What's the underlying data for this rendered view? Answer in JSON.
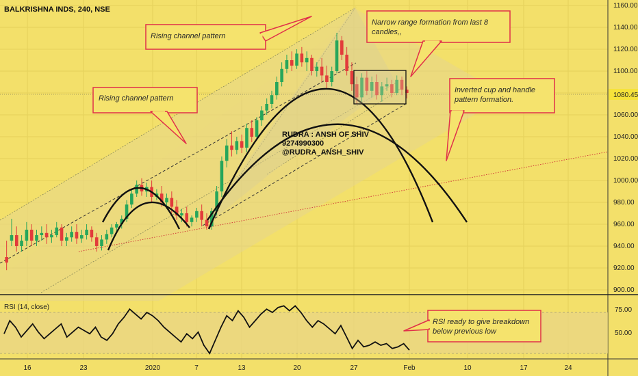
{
  "header": {
    "symbol_title": "BALKRISHNA INDS, 240, NSE"
  },
  "price_axis": {
    "ticks": [
      "1160.00",
      "1140.00",
      "1120.00",
      "1100.00",
      "1080.00",
      "1060.00",
      "1040.00",
      "1020.00",
      "1000.00",
      "980.00",
      "960.00",
      "940.00",
      "920.00",
      "900.00"
    ],
    "last_price_label": "1080.45"
  },
  "rsi_panel": {
    "title": "RSI (14, close)",
    "ticks": [
      "75.00",
      "50.00"
    ]
  },
  "time_axis": {
    "labels": [
      "16",
      "23",
      "2020",
      "7",
      "13",
      "20",
      "27",
      "Feb",
      "10",
      "17",
      "24"
    ]
  },
  "annotations": {
    "rising_channel_top": "Rising channel pattern",
    "rising_channel_left": "Rising channel pattern",
    "narrow_range": [
      "Narrow range formation from last 8",
      "candles,,"
    ],
    "inverted_cup": [
      "Inverted cup and handle",
      "pattern formation."
    ],
    "rsi_note": [
      "RSI ready to give breakdown",
      "below previous low"
    ]
  },
  "watermark": {
    "lines": [
      "RUDRA : ANSH OF SHIV",
      "9274990300",
      "@RUDRA_ANSH_SHIV"
    ]
  },
  "colors": {
    "background": "#f3e06a",
    "up_candle": "#26a65b",
    "down_candle": "#e23b3b",
    "callout_border": "#e0304a",
    "callout_fill": "#f5e36d",
    "channel_fill": "#e6d68c",
    "price_label_bg": "#f6e33a"
  },
  "chart_data": [
    {
      "type": "candlestick",
      "title": "BALKRISHNA INDS, 240, NSE",
      "ylim": [
        900,
        1160
      ],
      "x_labels": [
        "16",
        "23",
        "2020",
        "7",
        "13",
        "20",
        "27",
        "Feb",
        "10",
        "17",
        "24"
      ],
      "last_price": 1080.45,
      "candles": [
        [
          930,
          945,
          925,
          918
        ],
        [
          945,
          965,
          950,
          940
        ],
        [
          950,
          958,
          940,
          935
        ],
        [
          940,
          950,
          945,
          935
        ],
        [
          945,
          962,
          955,
          940
        ],
        [
          955,
          960,
          945,
          940
        ],
        [
          945,
          955,
          950,
          940
        ],
        [
          950,
          958,
          952,
          945
        ],
        [
          952,
          960,
          948,
          942
        ],
        [
          948,
          955,
          950,
          943
        ],
        [
          950,
          962,
          957,
          948
        ],
        [
          957,
          960,
          945,
          940
        ],
        [
          945,
          952,
          948,
          940
        ],
        [
          948,
          958,
          953,
          944
        ],
        [
          953,
          960,
          947,
          942
        ],
        [
          947,
          955,
          950,
          943
        ],
        [
          950,
          960,
          955,
          946
        ],
        [
          955,
          958,
          948,
          944
        ],
        [
          948,
          952,
          940,
          935
        ],
        [
          940,
          950,
          946,
          936
        ],
        [
          946,
          955,
          951,
          942
        ],
        [
          951,
          960,
          957,
          948
        ],
        [
          957,
          962,
          960,
          952
        ],
        [
          960,
          968,
          965,
          956
        ],
        [
          965,
          982,
          978,
          962
        ],
        [
          978,
          992,
          988,
          975
        ],
        [
          988,
          1000,
          996,
          985
        ],
        [
          996,
          1002,
          990,
          986
        ],
        [
          990,
          998,
          994,
          985
        ],
        [
          994,
          1000,
          985,
          980
        ],
        [
          985,
          992,
          988,
          982
        ],
        [
          988,
          995,
          980,
          976
        ],
        [
          980,
          988,
          984,
          974
        ],
        [
          984,
          990,
          976,
          970
        ],
        [
          976,
          982,
          968,
          964
        ],
        [
          968,
          974,
          970,
          962
        ],
        [
          970,
          976,
          962,
          958
        ],
        [
          962,
          968,
          966,
          958
        ],
        [
          966,
          975,
          972,
          962
        ],
        [
          972,
          978,
          964,
          958
        ],
        [
          964,
          970,
          958,
          955
        ],
        [
          958,
          975,
          972,
          955
        ],
        [
          972,
          995,
          990,
          968
        ],
        [
          990,
          1022,
          1018,
          985
        ],
        [
          1018,
          1038,
          1032,
          1012
        ],
        [
          1032,
          1045,
          1028,
          1022
        ],
        [
          1028,
          1040,
          1036,
          1024
        ],
        [
          1036,
          1042,
          1030,
          1025
        ],
        [
          1030,
          1052,
          1048,
          1026
        ],
        [
          1048,
          1055,
          1040,
          1035
        ],
        [
          1040,
          1058,
          1055,
          1038
        ],
        [
          1055,
          1068,
          1064,
          1050
        ],
        [
          1064,
          1075,
          1070,
          1060
        ],
        [
          1070,
          1082,
          1078,
          1066
        ],
        [
          1078,
          1095,
          1090,
          1074
        ],
        [
          1090,
          1108,
          1102,
          1086
        ],
        [
          1102,
          1115,
          1110,
          1098
        ],
        [
          1110,
          1118,
          1105,
          1100
        ],
        [
          1105,
          1120,
          1116,
          1102
        ],
        [
          1116,
          1122,
          1108,
          1104
        ],
        [
          1108,
          1118,
          1112,
          1100
        ],
        [
          1112,
          1115,
          1100,
          1096
        ],
        [
          1100,
          1108,
          1104,
          1095
        ],
        [
          1104,
          1112,
          1096,
          1090
        ],
        [
          1096,
          1105,
          1090,
          1084
        ],
        [
          1090,
          1104,
          1100,
          1086
        ],
        [
          1100,
          1135,
          1128,
          1098
        ],
        [
          1128,
          1132,
          1115,
          1110
        ],
        [
          1115,
          1122,
          1100,
          1096
        ],
        [
          1100,
          1108,
          1088,
          1082
        ],
        [
          1088,
          1095,
          1076,
          1070
        ],
        [
          1076,
          1098,
          1094,
          1072
        ],
        [
          1094,
          1100,
          1082,
          1078
        ],
        [
          1082,
          1095,
          1090,
          1076
        ],
        [
          1090,
          1097,
          1078,
          1074
        ],
        [
          1078,
          1090,
          1086,
          1072
        ],
        [
          1086,
          1094,
          1088,
          1082
        ],
        [
          1088,
          1092,
          1080,
          1076
        ],
        [
          1080,
          1096,
          1092,
          1078
        ],
        [
          1092,
          1095,
          1083,
          1078
        ],
        [
          1083,
          1086,
          1080,
          1075
        ]
      ]
    },
    {
      "type": "line",
      "title": "RSI (14, close)",
      "ylim": [
        35,
        85
      ],
      "y_ticks": [
        75,
        50
      ],
      "values": [
        62,
        70,
        66,
        60,
        64,
        68,
        63,
        59,
        62,
        65,
        68,
        60,
        63,
        66,
        64,
        62,
        66,
        60,
        58,
        62,
        68,
        72,
        77,
        74,
        71,
        75,
        73,
        70,
        66,
        63,
        60,
        57,
        62,
        59,
        63,
        55,
        50,
        58,
        66,
        73,
        70,
        76,
        72,
        66,
        70,
        74,
        77,
        75,
        78,
        79,
        76,
        79,
        75,
        70,
        66,
        70,
        68,
        65,
        62,
        67,
        60,
        53,
        58,
        54,
        55,
        57,
        55,
        56,
        53,
        54,
        56,
        52
      ]
    }
  ]
}
